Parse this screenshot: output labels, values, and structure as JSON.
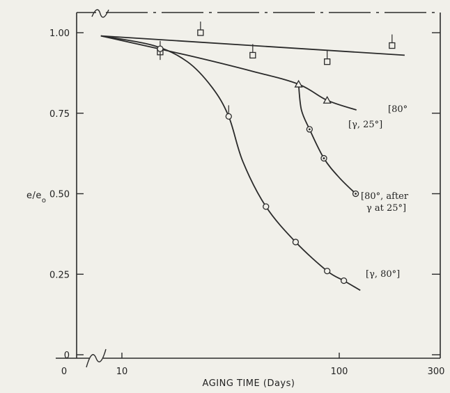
{
  "chart_data": {
    "type": "scatter",
    "title": "",
    "xlabel": "AGING TIME (Days)",
    "ylabel": "e/e",
    "ylabel_subscript": "o",
    "x_scale": "log",
    "x_break": true,
    "xlim": [
      6,
      300
    ],
    "ylim": [
      0,
      1.05
    ],
    "x_ticks": [
      {
        "value": 10,
        "label": "10"
      },
      {
        "value": 100,
        "label": "100"
      },
      {
        "value": 300,
        "label": "300"
      }
    ],
    "x_origin_label": "0",
    "y_ticks": [
      {
        "value": 0,
        "label": "0"
      },
      {
        "value": 0.25,
        "label": "0.25"
      },
      {
        "value": 0.5,
        "label": "0.50"
      },
      {
        "value": 0.75,
        "label": "0.75"
      },
      {
        "value": 1.0,
        "label": "1.00"
      }
    ],
    "grid": false,
    "series": [
      {
        "label_lines": [
          "[80°"
        ],
        "marker": "square",
        "points": [
          [
            15,
            0.94
          ],
          [
            23,
            1.0
          ],
          [
            40,
            0.93
          ],
          [
            88,
            0.91
          ],
          [
            175,
            0.96
          ]
        ],
        "curve": [
          [
            8,
            0.99
          ],
          [
            50,
            0.96
          ],
          [
            200,
            0.93
          ]
        ],
        "color": "#2a2a2a"
      },
      {
        "label_lines": [
          "[γ, 25°]"
        ],
        "marker": "triangle",
        "points": [
          [
            65,
            0.84
          ],
          [
            88,
            0.79
          ]
        ],
        "curve": [
          [
            8,
            0.99
          ],
          [
            20,
            0.93
          ],
          [
            40,
            0.88
          ],
          [
            65,
            0.84
          ],
          [
            88,
            0.79
          ],
          [
            120,
            0.76
          ]
        ],
        "color": "#2a2a2a"
      },
      {
        "label_lines": [
          "[80°, after",
          "γ at 25°]"
        ],
        "marker": "circle-dot",
        "points": [
          [
            73,
            0.7
          ],
          [
            85,
            0.61
          ],
          [
            119,
            0.5
          ]
        ],
        "curve": [
          [
            65,
            0.84
          ],
          [
            67,
            0.76
          ],
          [
            73,
            0.7
          ],
          [
            85,
            0.61
          ],
          [
            100,
            0.55
          ],
          [
            119,
            0.5
          ]
        ],
        "color": "#2a2a2a"
      },
      {
        "label_lines": [
          "[γ, 80°]"
        ],
        "marker": "circle",
        "points": [
          [
            15,
            0.95
          ],
          [
            31,
            0.74
          ],
          [
            46,
            0.46
          ],
          [
            63,
            0.35
          ],
          [
            88,
            0.26
          ],
          [
            105,
            0.23
          ]
        ],
        "curve": [
          [
            8,
            0.99
          ],
          [
            14,
            0.96
          ],
          [
            20,
            0.91
          ],
          [
            26,
            0.83
          ],
          [
            31,
            0.74
          ],
          [
            36,
            0.6
          ],
          [
            46,
            0.46
          ],
          [
            63,
            0.35
          ],
          [
            88,
            0.26
          ],
          [
            105,
            0.23
          ],
          [
            125,
            0.2
          ]
        ],
        "color": "#2a2a2a"
      }
    ]
  }
}
